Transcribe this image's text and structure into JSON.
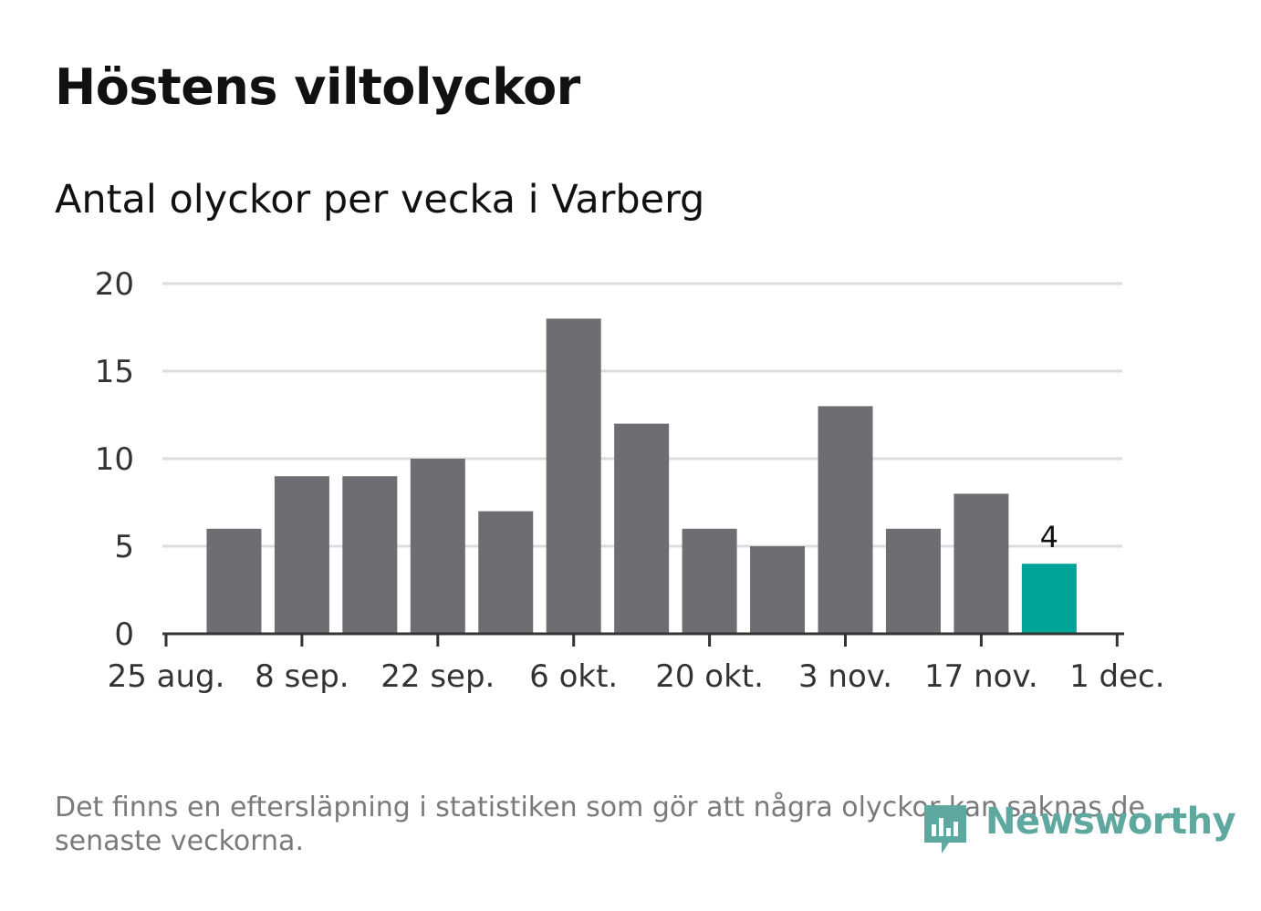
{
  "header": {
    "title": "Höstens viltolyckor",
    "subtitle": "Antal olyckor per vecka i Varberg"
  },
  "chart_data": {
    "type": "bar",
    "x_tick_labels": [
      "25 aug.",
      "8 sep.",
      "22 sep.",
      "6 okt.",
      "20 okt.",
      "3 nov.",
      "17 nov.",
      "1 dec."
    ],
    "y_ticks": [
      0,
      5,
      10,
      15,
      20
    ],
    "ylim": [
      0,
      20
    ],
    "values": [
      6,
      9,
      9,
      10,
      7,
      18,
      12,
      6,
      5,
      13,
      6,
      8,
      4
    ],
    "highlight_last": true,
    "data_labels": [
      {
        "index": 12,
        "text": "4"
      }
    ],
    "grid": true,
    "colors": {
      "bar": "#6e6d72",
      "highlight": "#00a397",
      "grid": "#dcdcdc",
      "axis": "#333333",
      "text": "#333333"
    }
  },
  "footer": {
    "note": "Det finns en eftersläpning i statistiken som gör att några olyckor kan saknas de senaste veckorna.",
    "logo_text": "Newsworthy",
    "logo_icon": "newsworthy-logo-icon",
    "logo_color": "#4fa39b"
  }
}
